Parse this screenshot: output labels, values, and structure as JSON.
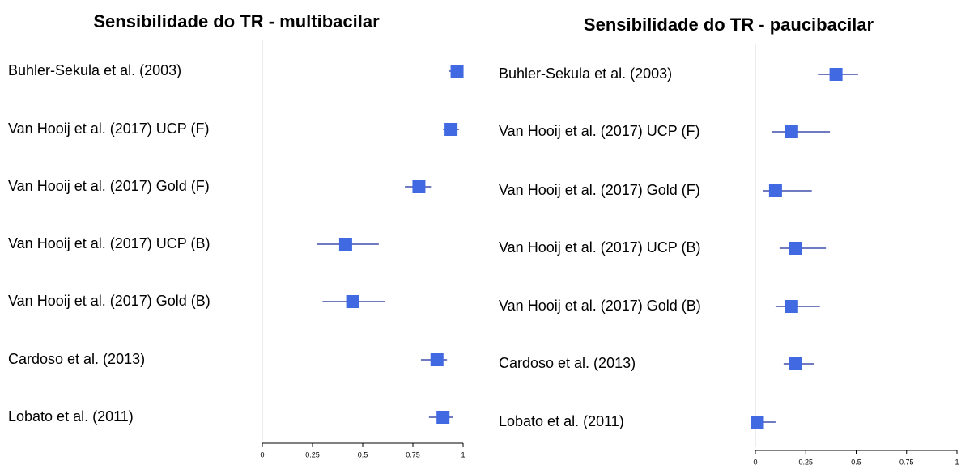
{
  "chart_data": [
    {
      "type": "forest",
      "title": "Sensibilidade do TR - multibacilar",
      "categories": [
        "Buhler-Sekula et al. (2003)",
        "Van Hooij et al. (2017) UCP (F)",
        "Van Hooij et al. (2017) Gold (F)",
        "Van Hooij et al. (2017) UCP (B)",
        "Van Hooij et al. (2017) Gold (B)",
        "Cardoso et al. (2013)",
        "Lobato et al. (2011)"
      ],
      "values": [
        0.97,
        0.94,
        0.78,
        0.415,
        0.45,
        0.87,
        0.9
      ],
      "lower": [
        0.93,
        0.9,
        0.71,
        0.27,
        0.3,
        0.79,
        0.83
      ],
      "upper": [
        1.0,
        0.98,
        0.84,
        0.58,
        0.61,
        0.92,
        0.95
      ],
      "color": "#4169e1",
      "xlim": [
        0,
        1
      ],
      "xticks": [
        0,
        0.25,
        0.5,
        0.75,
        1
      ]
    },
    {
      "type": "forest",
      "title": "Sensibilidade do TR - paucibacilar",
      "categories": [
        "Buhler-Sekula et al. (2003)",
        "Van Hooij et al. (2017) UCP (F)",
        "Van Hooij et al. (2017) Gold (F)",
        "Van Hooij et al. (2017) UCP (B)",
        "Van Hooij et al. (2017) Gold (B)",
        "Cardoso et al. (2013)",
        "Lobato et al. (2011)"
      ],
      "values": [
        0.4,
        0.18,
        0.1,
        0.2,
        0.18,
        0.2,
        0.01
      ],
      "lower": [
        0.31,
        0.08,
        0.04,
        0.12,
        0.1,
        0.14,
        0.0
      ],
      "upper": [
        0.51,
        0.37,
        0.28,
        0.35,
        0.32,
        0.29,
        0.1
      ],
      "color": "#4169e1",
      "xlim": [
        0,
        1
      ],
      "xticks": [
        0,
        0.25,
        0.5,
        0.75,
        1
      ]
    }
  ]
}
